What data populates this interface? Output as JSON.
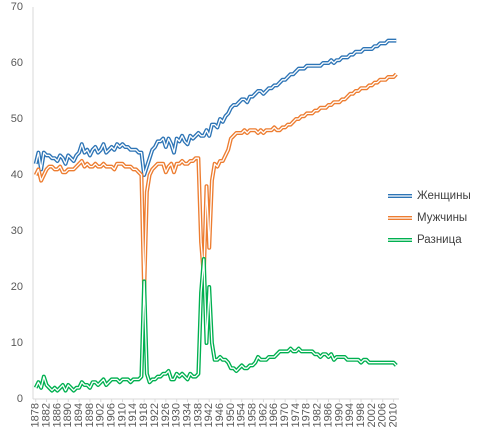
{
  "chart_data": {
    "type": "line",
    "x": [
      1878,
      1879,
      1880,
      1881,
      1882,
      1883,
      1884,
      1885,
      1886,
      1887,
      1888,
      1889,
      1890,
      1891,
      1892,
      1893,
      1894,
      1895,
      1896,
      1897,
      1898,
      1899,
      1900,
      1901,
      1902,
      1903,
      1904,
      1905,
      1906,
      1907,
      1908,
      1909,
      1910,
      1911,
      1912,
      1913,
      1914,
      1915,
      1916,
      1917,
      1918,
      1919,
      1920,
      1921,
      1922,
      1923,
      1924,
      1925,
      1926,
      1927,
      1928,
      1929,
      1930,
      1931,
      1932,
      1933,
      1934,
      1935,
      1936,
      1937,
      1938,
      1939,
      1940,
      1941,
      1942,
      1943,
      1944,
      1945,
      1946,
      1947,
      1948,
      1949,
      1950,
      1951,
      1952,
      1953,
      1954,
      1955,
      1956,
      1957,
      1958,
      1959,
      1960,
      1961,
      1962,
      1963,
      1964,
      1965,
      1966,
      1967,
      1968,
      1969,
      1970,
      1971,
      1972,
      1973,
      1974,
      1975,
      1976,
      1977,
      1978,
      1979,
      1980,
      1981,
      1982,
      1983,
      1984,
      1985,
      1986,
      1987,
      1988,
      1989,
      1990,
      1991,
      1992,
      1993,
      1994,
      1995,
      1996,
      1997,
      1998,
      1999,
      2000,
      2001,
      2002,
      2003,
      2004,
      2005,
      2006,
      2007,
      2008,
      2009,
      2010,
      2011
    ],
    "series": [
      {
        "name": "Женщины",
        "color": "#2e75b6",
        "values": [
          42,
          44,
          41,
          44,
          43.5,
          43.5,
          43,
          43,
          42.5,
          43.5,
          43,
          42,
          43.5,
          43,
          42.5,
          43.5,
          44,
          45.5,
          44,
          44.5,
          43.5,
          44.5,
          45,
          44,
          44.5,
          45.5,
          44,
          44.5,
          45,
          44.5,
          45.5,
          45,
          45.5,
          45,
          45,
          44.5,
          44.5,
          44.5,
          44,
          44,
          40,
          41.5,
          43,
          44.5,
          45,
          46,
          46,
          46.5,
          45,
          46.5,
          45.5,
          44,
          46.5,
          46,
          47,
          46,
          45.5,
          47,
          46.5,
          47,
          47.5,
          47,
          47,
          48,
          47,
          49,
          49,
          48.5,
          50,
          49.5,
          50.5,
          51,
          52,
          52.5,
          52.5,
          53,
          53.5,
          53.5,
          53,
          54,
          54,
          54.5,
          55,
          55,
          54.5,
          55,
          55.5,
          55.5,
          56,
          56,
          56.5,
          57,
          57,
          57.5,
          58,
          58,
          58.5,
          59,
          59,
          59,
          59.5,
          59.5,
          59.5,
          59.5,
          59.5,
          59.5,
          60,
          60,
          60,
          60.5,
          60,
          60.5,
          60.5,
          61,
          61,
          61,
          61.5,
          61.5,
          62,
          62,
          62,
          62.5,
          62.5,
          62.5,
          62.5,
          63,
          63,
          63.5,
          63.5,
          63.5,
          64,
          64,
          64,
          64
        ]
      },
      {
        "name": "Мужчины",
        "color": "#ed7d31",
        "values": [
          40,
          41,
          39,
          40,
          41,
          41.5,
          41.5,
          41,
          41,
          41.5,
          40.5,
          40.5,
          41,
          41,
          41,
          41.5,
          42,
          42.5,
          41.5,
          42,
          41.5,
          41.5,
          42,
          41.5,
          41.5,
          42,
          41.5,
          41.5,
          41.5,
          41,
          42,
          42,
          42,
          41.5,
          41.5,
          41.5,
          41,
          41,
          40.5,
          40,
          19,
          37,
          40,
          41,
          41.5,
          42,
          42,
          42,
          40.5,
          41.5,
          42,
          40.5,
          42,
          42,
          42.5,
          42,
          42,
          42.5,
          42.5,
          43,
          43,
          28,
          22,
          38,
          27,
          39,
          42,
          41.5,
          42.5,
          42.5,
          43.5,
          44.5,
          46.5,
          47,
          47.5,
          47.5,
          47.5,
          48,
          47.5,
          48,
          48,
          48,
          47.5,
          48,
          47.5,
          48,
          48,
          48,
          48.5,
          48,
          48,
          48.5,
          48.5,
          49,
          49,
          49.5,
          50,
          50,
          50.5,
          50.5,
          51,
          51,
          51,
          51.5,
          51.5,
          52,
          52,
          52,
          52.5,
          52.5,
          53,
          53,
          53,
          53.5,
          53.5,
          54,
          54.5,
          54.5,
          55,
          55,
          55.5,
          55.5,
          55.5,
          56,
          56,
          56.5,
          56.5,
          57,
          57,
          57,
          57.5,
          57.5,
          57.5,
          58
        ]
      },
      {
        "name": "Разница",
        "color": "#00b050",
        "values": [
          2,
          3,
          2,
          4,
          2.5,
          2,
          1.5,
          2,
          1.5,
          2,
          2.5,
          1.5,
          2.5,
          2,
          1.5,
          2,
          2,
          3,
          2.5,
          2.5,
          2,
          3,
          3,
          2.5,
          3,
          3.5,
          2.5,
          3,
          3.5,
          3.5,
          3.5,
          3,
          3.5,
          3.5,
          3.5,
          3,
          3.5,
          3.5,
          3.5,
          4,
          21,
          4.5,
          3,
          3.5,
          3.5,
          4,
          4,
          4.5,
          4.5,
          5,
          3.5,
          3.5,
          4.5,
          4,
          4.5,
          4,
          3.5,
          4.5,
          4,
          4,
          4.5,
          19,
          25,
          10,
          20,
          10,
          7,
          7,
          7.5,
          7,
          7,
          6.5,
          5.5,
          5.5,
          5,
          5.5,
          6,
          5.5,
          5.5,
          6,
          6,
          6.5,
          7.5,
          7,
          7,
          7,
          7.5,
          7.5,
          7.5,
          8,
          8.5,
          8.5,
          8.5,
          8.5,
          9,
          8.5,
          8.5,
          9,
          8.5,
          8.5,
          8.5,
          8.5,
          8.5,
          8,
          8,
          7.5,
          8,
          8,
          7.5,
          8,
          7,
          7.5,
          7.5,
          7.5,
          7.5,
          7,
          7,
          7,
          7,
          7,
          6.5,
          7,
          7,
          6.5,
          6.5,
          6.5,
          6.5,
          6.5,
          6.5,
          6.5,
          6.5,
          6.5,
          6.5,
          6
        ]
      }
    ],
    "xlim": [
      1877,
      2012
    ],
    "xticks": [
      1878,
      1882,
      1886,
      1890,
      1894,
      1898,
      1902,
      1906,
      1910,
      1914,
      1918,
      1922,
      1926,
      1930,
      1934,
      1938,
      1942,
      1946,
      1950,
      1954,
      1958,
      1962,
      1966,
      1970,
      1974,
      1978,
      1982,
      1986,
      1990,
      1994,
      1998,
      2002,
      2006,
      2010
    ],
    "ylim": [
      0,
      70
    ],
    "yticks": [
      0,
      10,
      20,
      30,
      40,
      50,
      60,
      70
    ],
    "grid": false,
    "legend": "right"
  }
}
